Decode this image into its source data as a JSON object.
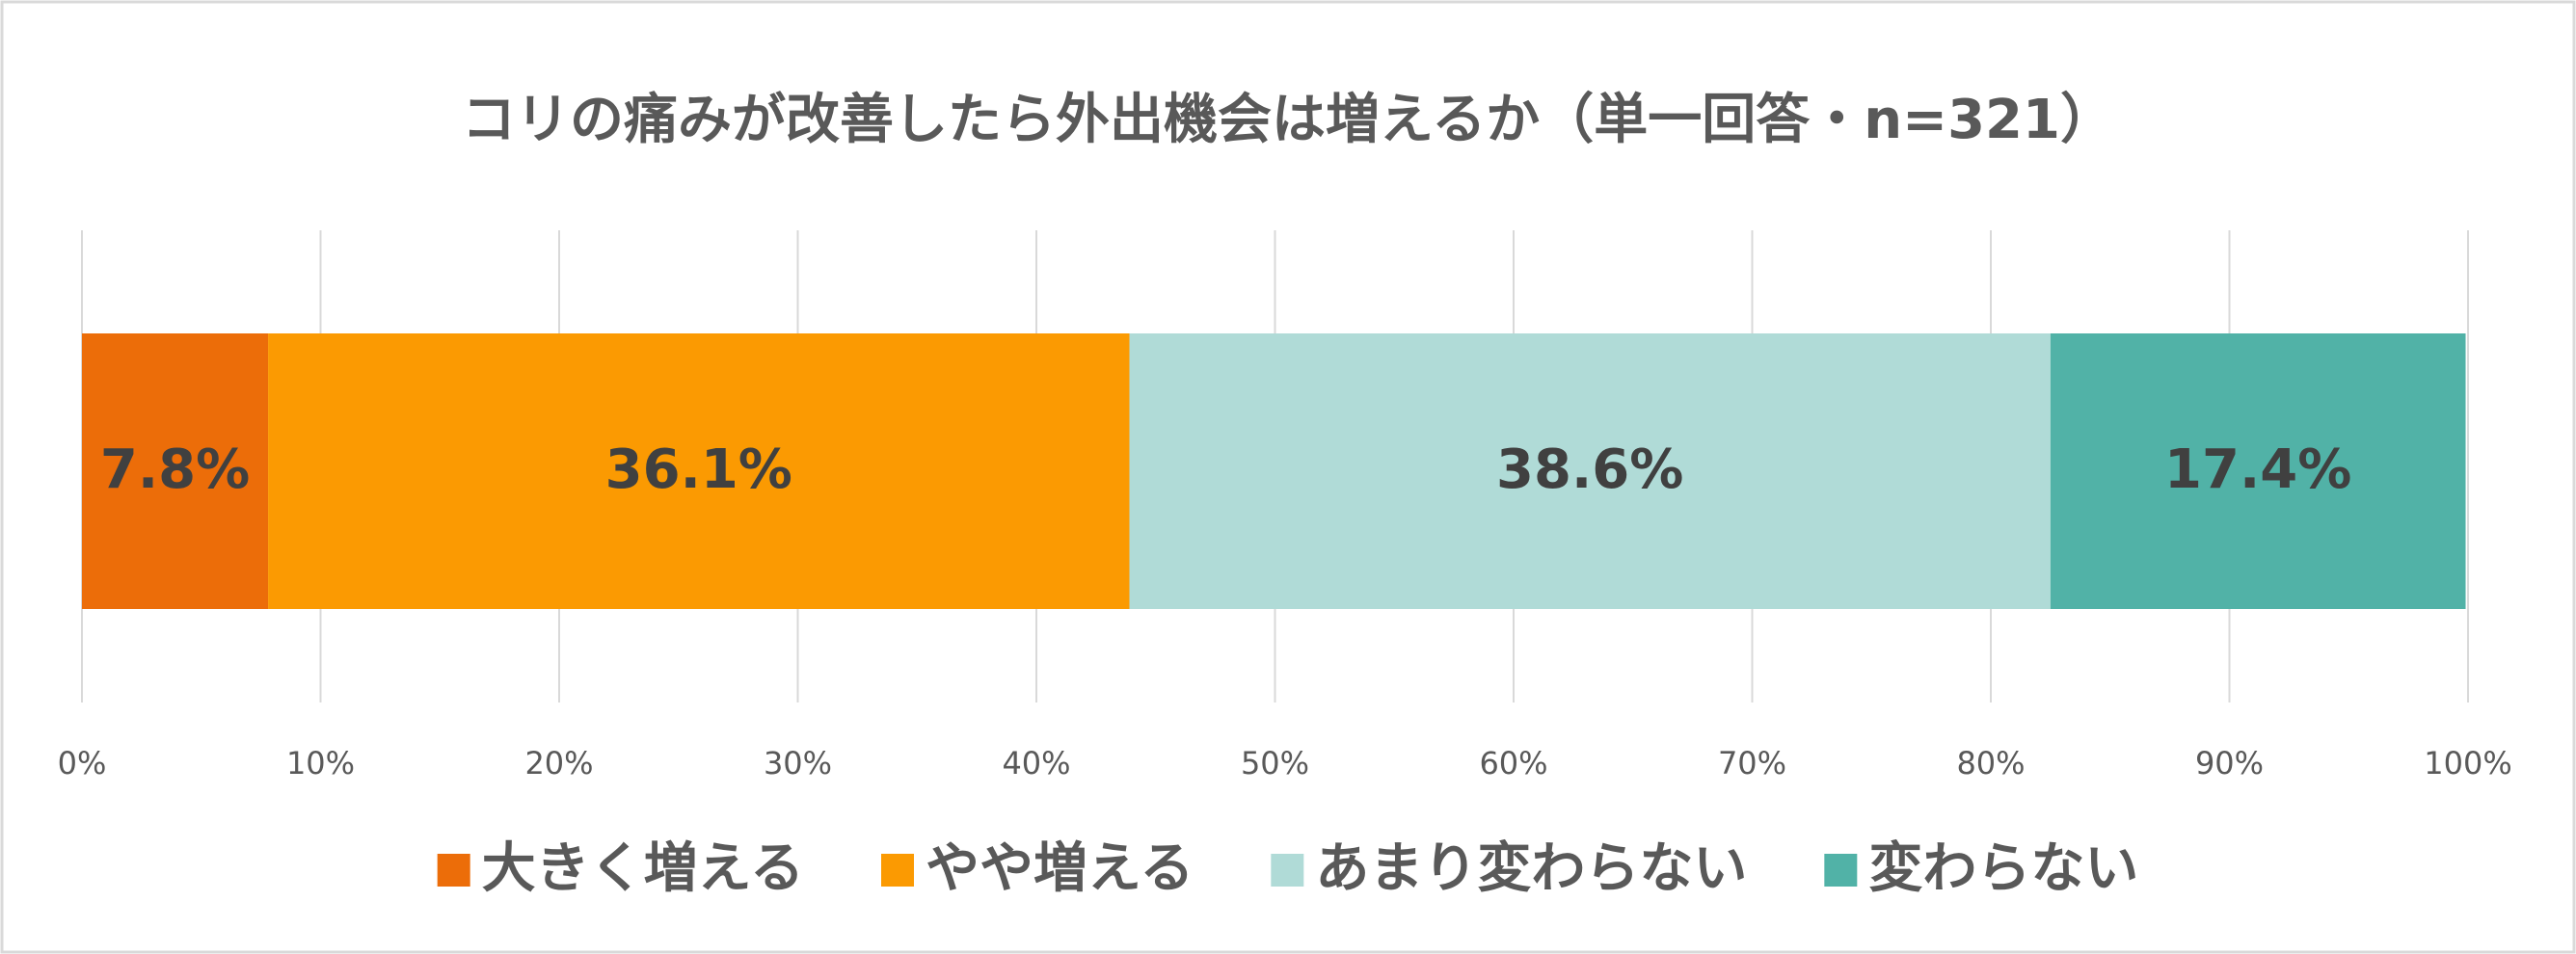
{
  "chart_data": {
    "type": "stacked-barh",
    "title": "コリの痛みが改善したら外出機会は増えるか（単一回答・n=321）",
    "categories": [
      null
    ],
    "series": [
      {
        "name": "大きく増える",
        "color": "#ec6d09",
        "values": [
          7.8
        ],
        "value_labels": [
          "7.8%"
        ]
      },
      {
        "name": "やや増える",
        "color": "#fb9a02",
        "values": [
          36.1
        ],
        "value_labels": [
          "36.1%"
        ]
      },
      {
        "name": "あまり変わらない",
        "color": "#b0dbd7",
        "values": [
          38.6
        ],
        "value_labels": [
          "38.6%"
        ]
      },
      {
        "name": "変わらない",
        "color": "#51b2a7",
        "values": [
          17.4
        ],
        "value_labels": [
          "17.4%"
        ]
      }
    ],
    "xlim": [
      0,
      100
    ],
    "xticks": [
      {
        "value": 0,
        "label": "0%"
      },
      {
        "value": 10,
        "label": "10%"
      },
      {
        "value": 20,
        "label": "20%"
      },
      {
        "value": 30,
        "label": "30%"
      },
      {
        "value": 40,
        "label": "40%"
      },
      {
        "value": 50,
        "label": "50%"
      },
      {
        "value": 60,
        "label": "60%"
      },
      {
        "value": 70,
        "label": "70%"
      },
      {
        "value": 80,
        "label": "80%"
      },
      {
        "value": 90,
        "label": "90%"
      },
      {
        "value": 100,
        "label": "100%"
      }
    ],
    "grid": true,
    "legend": "bottom"
  }
}
